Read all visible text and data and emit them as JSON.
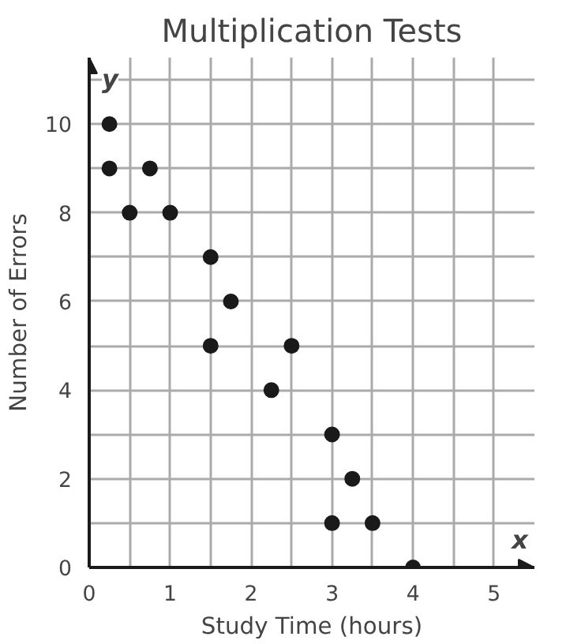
{
  "chart_data": {
    "type": "scatter",
    "title": "Multiplication Tests",
    "xlabel": "Study Time (hours)",
    "ylabel": "Number of Errors",
    "x": [
      0.25,
      0.25,
      0.5,
      0.75,
      1,
      1.5,
      1.75,
      1.5,
      2.5,
      2.25,
      3,
      3.25,
      3,
      3.5,
      4
    ],
    "values": [
      10,
      9,
      8,
      9,
      8,
      7,
      6,
      5,
      5,
      4,
      3,
      2,
      1,
      1,
      0
    ],
    "color": "#1a1a1a",
    "marker": "circle",
    "grid": true,
    "xlim": [
      0,
      5.5
    ],
    "ylim": [
      0,
      11.5
    ],
    "xticks": [
      0,
      {
        "value": 0.5,
        "label": null
      },
      1,
      {
        "value": 1.5,
        "label": null
      },
      2,
      {
        "value": 2.5,
        "label": null
      },
      3,
      {
        "value": 3.5,
        "label": null
      },
      4,
      {
        "value": 4.5,
        "label": null
      },
      5
    ],
    "yticks": [
      0,
      {
        "value": 1,
        "label": null
      },
      2,
      {
        "value": 3,
        "label": null
      },
      4,
      {
        "value": 5,
        "label": null
      },
      6,
      {
        "value": 7,
        "label": null
      },
      8,
      {
        "value": 9,
        "label": null
      },
      10,
      {
        "value": 11,
        "label": null
      }
    ],
    "annotations": [
      "x",
      "y"
    ]
  }
}
